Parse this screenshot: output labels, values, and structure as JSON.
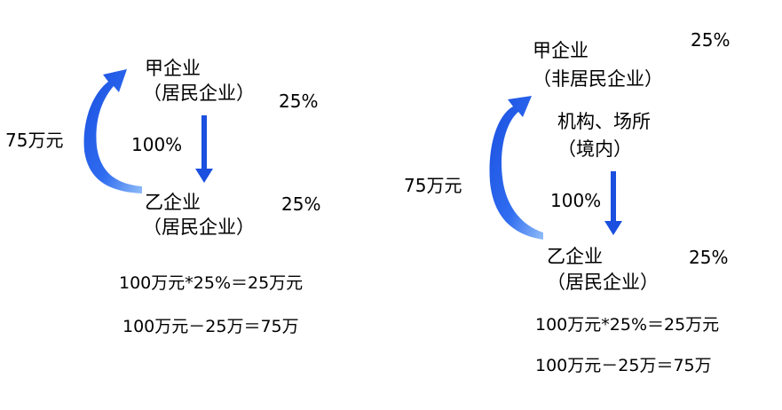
{
  "left": {
    "parent_name": "甲企业",
    "parent_type": "（居民企业）",
    "parent_rate": "25%",
    "ownership": "100%",
    "sub_name": "乙企业",
    "sub_type": "（居民企业）",
    "sub_rate": "25%",
    "return_amount": "75万元",
    "formula_1": "100万元*25%＝25万元",
    "formula_2": "100万元－25万＝75万"
  },
  "right": {
    "parent_name": "甲企业",
    "parent_type": "（非居民企业）",
    "parent_rate": "25%",
    "establishment": "机构、场所",
    "establishment_loc": "（境内）",
    "ownership": "100%",
    "sub_name": "乙企业",
    "sub_type": "（居民企业）",
    "sub_rate": "25%",
    "return_amount": "75万元",
    "formula_1": "100万元*25%＝25万元",
    "formula_2": "100万元－25万＝75万"
  },
  "colors": {
    "arrow_blue": "#1a4fe0",
    "arrow_light": "#7fb2f5"
  }
}
